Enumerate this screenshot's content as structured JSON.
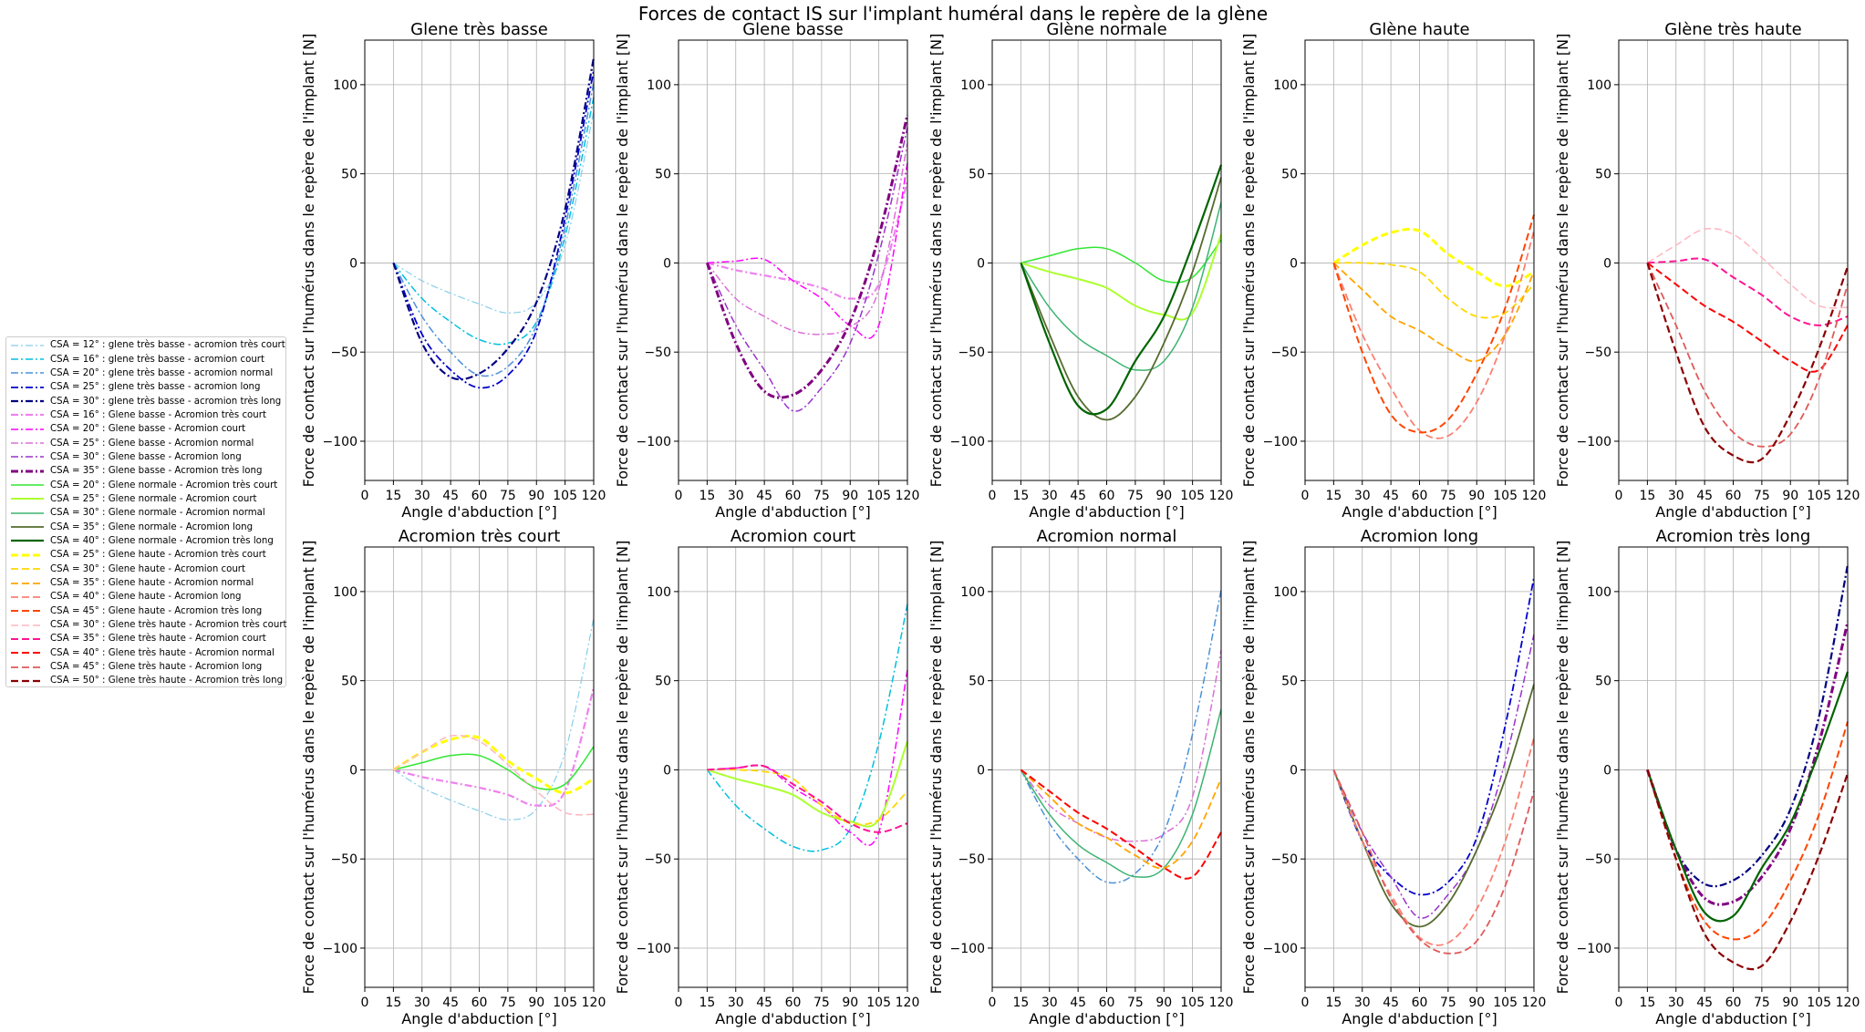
{
  "figure": {
    "suptitle": "Forces de contact IS sur l'implant huméral dans le repère de la glène"
  },
  "legend": {
    "entries": [
      {
        "label": "CSA = 12° : glene très basse     -  acromion très court",
        "color": "#87CEEB",
        "dash": "dashdot",
        "width": 1.2
      },
      {
        "label": "CSA = 16° : glene très basse     -  acromion court",
        "color": "#00BFDF",
        "dash": "dashdot",
        "width": 1.5
      },
      {
        "label": "CSA = 20° : glene très basse     -  acromion normal",
        "color": "#4A90D9",
        "dash": "dashdot",
        "width": 1.5
      },
      {
        "label": "CSA = 25° : glene très basse     -  acromion long",
        "color": "#0000CD",
        "dash": "dashdot",
        "width": 1.8
      },
      {
        "label": "CSA = 30° : glene très basse     -  acromion très long",
        "color": "#000080",
        "dash": "dashdot",
        "width": 2.2
      },
      {
        "label": "CSA = 16° : Glene basse          -  Acromion très court",
        "color": "#EE82EE",
        "dash": "dashdot",
        "width": 2.2
      },
      {
        "label": "CSA = 20° : Glene basse          -  Acromion court",
        "color": "#FF00FF",
        "dash": "dashdot",
        "width": 1.5
      },
      {
        "label": "CSA = 25° : Glene basse          -  Acromion normal",
        "color": "#DA70D6",
        "dash": "dashdot",
        "width": 1.5
      },
      {
        "label": "CSA = 30° : Glene basse          -  Acromion long",
        "color": "#9932CC",
        "dash": "dashdot",
        "width": 1.5
      },
      {
        "label": "CSA = 35° : Glene basse          -  Acromion très long",
        "color": "#800080",
        "dash": "dashdot",
        "width": 3.0
      },
      {
        "label": "CSA = 20° : Glene normale        -  Acromion très court",
        "color": "#32E632",
        "dash": "solid",
        "width": 1.5
      },
      {
        "label": "CSA = 25° : Glene normale        -  Acromion court",
        "color": "#ADFF2F",
        "dash": "solid",
        "width": 2.0
      },
      {
        "label": "CSA = 30° : Glene normale        -  Acromion normal",
        "color": "#3CB371",
        "dash": "solid",
        "width": 1.5
      },
      {
        "label": "CSA = 35° : Glene normale        -  Acromion long",
        "color": "#556B2F",
        "dash": "solid",
        "width": 1.8
      },
      {
        "label": "CSA = 40° : Glene normale        -  Acromion très long",
        "color": "#006400",
        "dash": "solid",
        "width": 2.2
      },
      {
        "label": "CSA = 25° : Glene haute          -  Acromion très court",
        "color": "#FFFF00",
        "dash": "dashed",
        "width": 3.0
      },
      {
        "label": "CSA = 30° : Glene haute          -  Acromion court",
        "color": "#FFD700",
        "dash": "dashed",
        "width": 1.8
      },
      {
        "label": "CSA = 35° : Glene haute          -  Acromion normal",
        "color": "#FFA500",
        "dash": "dashed",
        "width": 1.8
      },
      {
        "label": "CSA = 40° : Glene haute          -  Acromion long",
        "color": "#FA8072",
        "dash": "dashed",
        "width": 1.8
      },
      {
        "label": "CSA = 45° : Glene haute          -  Acromion très long",
        "color": "#FF4500",
        "dash": "dashed",
        "width": 2.0
      },
      {
        "label": "CSA = 30° : Glene très haute     -  Acromion très court",
        "color": "#FFB6C1",
        "dash": "dashed",
        "width": 1.5
      },
      {
        "label": "CSA = 35° : Glene très haute     -  Acromion court",
        "color": "#FF1493",
        "dash": "dashed",
        "width": 2.0
      },
      {
        "label": "CSA = 40° : Glene très haute     -  Acromion normal",
        "color": "#FF0000",
        "dash": "dashed",
        "width": 2.0
      },
      {
        "label": "CSA = 45° : Glene très haute     -  Acromion long",
        "color": "#E05A5A",
        "dash": "dashed",
        "width": 1.8
      },
      {
        "label": "CSA = 50° : Glene très haute     -  Acromion très long",
        "color": "#8B0000",
        "dash": "dashed",
        "width": 2.2
      }
    ]
  },
  "chart_data": {
    "type": "line",
    "xlabel": "Angle d'abduction [°]",
    "ylabel": "Force de contact sur l'humérus dans le repère de l'implant [N]",
    "xlim": [
      0,
      120
    ],
    "ylim": [
      -122,
      125
    ],
    "xticks": [
      0,
      15,
      30,
      45,
      60,
      75,
      90,
      105,
      120
    ],
    "yticks": [
      -100,
      -50,
      0,
      50,
      100
    ],
    "grid": true,
    "x": [
      15,
      30,
      45,
      60,
      75,
      90,
      105,
      120
    ],
    "subplots": [
      {
        "title": "Glene très basse",
        "series": [
          0,
          1,
          2,
          3,
          4
        ]
      },
      {
        "title": "Glene basse",
        "series": [
          5,
          6,
          7,
          8,
          9
        ]
      },
      {
        "title": "Glène normale",
        "series": [
          10,
          11,
          12,
          13,
          14
        ]
      },
      {
        "title": "Glène haute",
        "series": [
          15,
          16,
          17,
          18,
          19
        ]
      },
      {
        "title": "Glène très haute",
        "series": [
          20,
          21,
          22,
          23,
          24
        ]
      },
      {
        "title": "Acromion très court",
        "series": [
          0,
          5,
          10,
          15,
          20
        ]
      },
      {
        "title": "Acromion court",
        "series": [
          1,
          6,
          11,
          16,
          21
        ]
      },
      {
        "title": "Acromion normal",
        "series": [
          2,
          7,
          12,
          17,
          22
        ]
      },
      {
        "title": "Acromion long",
        "series": [
          3,
          8,
          13,
          18,
          23
        ]
      },
      {
        "title": "Acromion très long",
        "series": [
          4,
          9,
          14,
          19,
          24
        ]
      }
    ],
    "series": [
      {
        "values": [
          0,
          -10,
          -17,
          -23,
          -28,
          -22,
          10,
          85
        ]
      },
      {
        "values": [
          0,
          -20,
          -33,
          -43,
          -45,
          -33,
          15,
          93
        ]
      },
      {
        "values": [
          0,
          -30,
          -50,
          -63,
          -58,
          -35,
          20,
          101
        ]
      },
      {
        "values": [
          0,
          -40,
          -60,
          -70,
          -63,
          -38,
          25,
          108
        ]
      },
      {
        "values": [
          0,
          -45,
          -64,
          -62,
          -48,
          -22,
          30,
          115
        ]
      },
      {
        "values": [
          0,
          -4,
          -7,
          -10,
          -14,
          -20,
          -12,
          46
        ]
      },
      {
        "values": [
          0,
          1,
          2,
          -10,
          -20,
          -35,
          -35,
          56
        ]
      },
      {
        "values": [
          0,
          -20,
          -30,
          -38,
          -40,
          -36,
          -15,
          67
        ]
      },
      {
        "values": [
          0,
          -35,
          -60,
          -83,
          -70,
          -45,
          5,
          76
        ]
      },
      {
        "values": [
          0,
          -45,
          -72,
          -74,
          -60,
          -33,
          15,
          83
        ]
      },
      {
        "values": [
          0,
          4,
          8,
          8,
          0,
          -10,
          -8,
          13
        ]
      },
      {
        "values": [
          0,
          -5,
          -9,
          -14,
          -24,
          -29,
          -28,
          16
        ]
      },
      {
        "values": [
          0,
          -25,
          -42,
          -52,
          -60,
          -55,
          -25,
          34
        ]
      },
      {
        "values": [
          0,
          -40,
          -75,
          -88,
          -75,
          -45,
          -5,
          48
        ]
      },
      {
        "values": [
          0,
          -45,
          -80,
          -82,
          -55,
          -30,
          10,
          55
        ]
      },
      {
        "values": [
          0,
          10,
          17,
          18,
          5,
          -5,
          -13,
          -5
        ]
      },
      {
        "values": [
          0,
          0,
          -1,
          -5,
          -20,
          -30,
          -28,
          -12
        ]
      },
      {
        "values": [
          0,
          -15,
          -30,
          -38,
          -48,
          -55,
          -40,
          -5
        ]
      },
      {
        "values": [
          0,
          -40,
          -70,
          -94,
          -97,
          -78,
          -40,
          18
        ]
      },
      {
        "values": [
          0,
          -50,
          -85,
          -95,
          -88,
          -62,
          -25,
          27
        ]
      },
      {
        "values": [
          0,
          10,
          19,
          16,
          3,
          -12,
          -24,
          -25
        ]
      },
      {
        "values": [
          0,
          1,
          2,
          -8,
          -18,
          -30,
          -35,
          -30
        ]
      },
      {
        "values": [
          0,
          -12,
          -24,
          -33,
          -44,
          -55,
          -60,
          -35
        ]
      },
      {
        "values": [
          0,
          -35,
          -72,
          -95,
          -103,
          -96,
          -65,
          -12
        ]
      },
      {
        "values": [
          0,
          -50,
          -92,
          -108,
          -110,
          -85,
          -48,
          -2
        ]
      }
    ]
  }
}
